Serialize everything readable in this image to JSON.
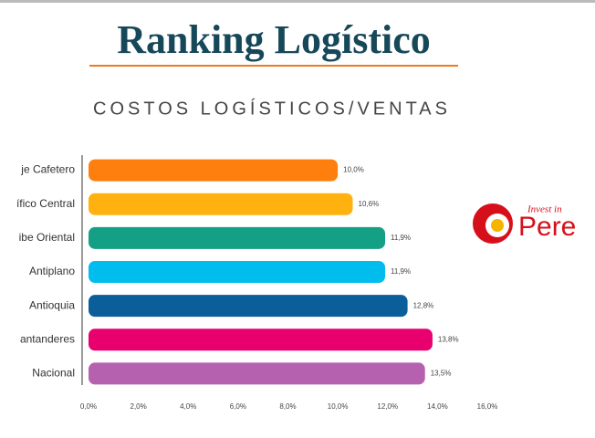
{
  "chart_data": {
    "type": "bar",
    "orientation": "horizontal",
    "title": "Ranking Logístico",
    "subtitle": "COSTOS LOGÍSTICOS/VENTAS",
    "categories": [
      "je Cafetero",
      "ífico Central",
      "ibe Oriental",
      "Antiplano",
      "Antioquia",
      "antanderes",
      "Nacional"
    ],
    "values": [
      10.0,
      10.6,
      11.9,
      11.9,
      12.8,
      13.8,
      13.5
    ],
    "value_labels": [
      "10,0%",
      "10,6%",
      "11,9%",
      "11,9%",
      "12,8%",
      "13,8%",
      "13,5%"
    ],
    "colors": [
      "#ff7f0e",
      "#ffb20f",
      "#14a085",
      "#00bdee",
      "#0a5e9a",
      "#e8006f",
      "#b661b0"
    ],
    "xlim": [
      0,
      16
    ],
    "xticks": [
      {
        "value": 0,
        "label": "0,0%"
      },
      {
        "value": 2,
        "label": "2,0%"
      },
      {
        "value": 4,
        "label": "4,0%"
      },
      {
        "value": 6,
        "label": "6,0%"
      },
      {
        "value": 8,
        "label": "8,0%"
      },
      {
        "value": 10,
        "label": "10,0%"
      },
      {
        "value": 12,
        "label": "12,0%"
      },
      {
        "value": 14,
        "label": "14,0%"
      },
      {
        "value": 16,
        "label": "16,0%"
      }
    ]
  },
  "logo": {
    "script": "Invest in",
    "name": "Pere"
  }
}
